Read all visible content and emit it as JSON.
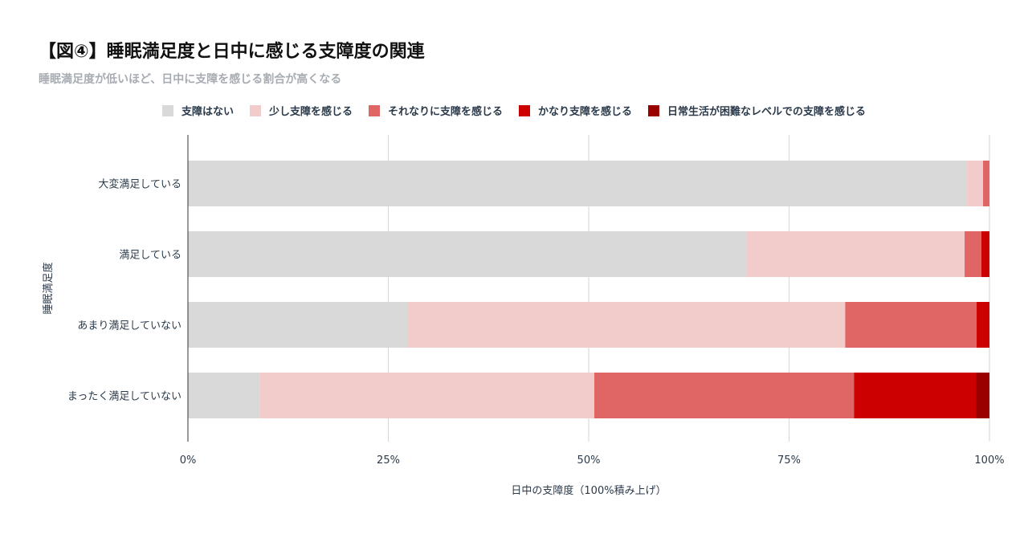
{
  "header": {
    "title": "【図④】睡眠満足度と日中に感じる支障度の関連",
    "subtitle": "睡眠満足度が低いほど、日中に支障を感じる割合が高くなる"
  },
  "chart_data": {
    "type": "bar",
    "orientation": "horizontal",
    "stacked": "100%",
    "categories": [
      "大変満足している",
      "満足している",
      "あまり満足していない",
      "まったく満足していない"
    ],
    "series": [
      {
        "name": "支障はない",
        "color": "#d9d9d9",
        "values": [
          97.2,
          69.7,
          27.4,
          9.0
        ]
      },
      {
        "name": "少し支障を感じる",
        "color": "#f2cbcb",
        "values": [
          2.0,
          27.2,
          54.6,
          41.7
        ]
      },
      {
        "name": "それなりに支障を感じる",
        "color": "#e06666",
        "values": [
          0.8,
          2.1,
          16.4,
          32.4
        ]
      },
      {
        "name": "かなり支障を感じる",
        "color": "#cc0000",
        "values": [
          0.0,
          1.0,
          1.6,
          15.2
        ]
      },
      {
        "name": "日常生活が困難なレベルでの支障を感じる",
        "color": "#990000",
        "values": [
          0.0,
          0.0,
          0.0,
          1.7
        ]
      }
    ],
    "xlabel": "日中の支障度（100%積み上げ）",
    "ylabel": "睡眠満足度",
    "xticks": [
      "0%",
      "25%",
      "50%",
      "75%",
      "100%"
    ],
    "xlim": [
      0,
      100
    ],
    "grid": true,
    "legend_position": "top"
  }
}
